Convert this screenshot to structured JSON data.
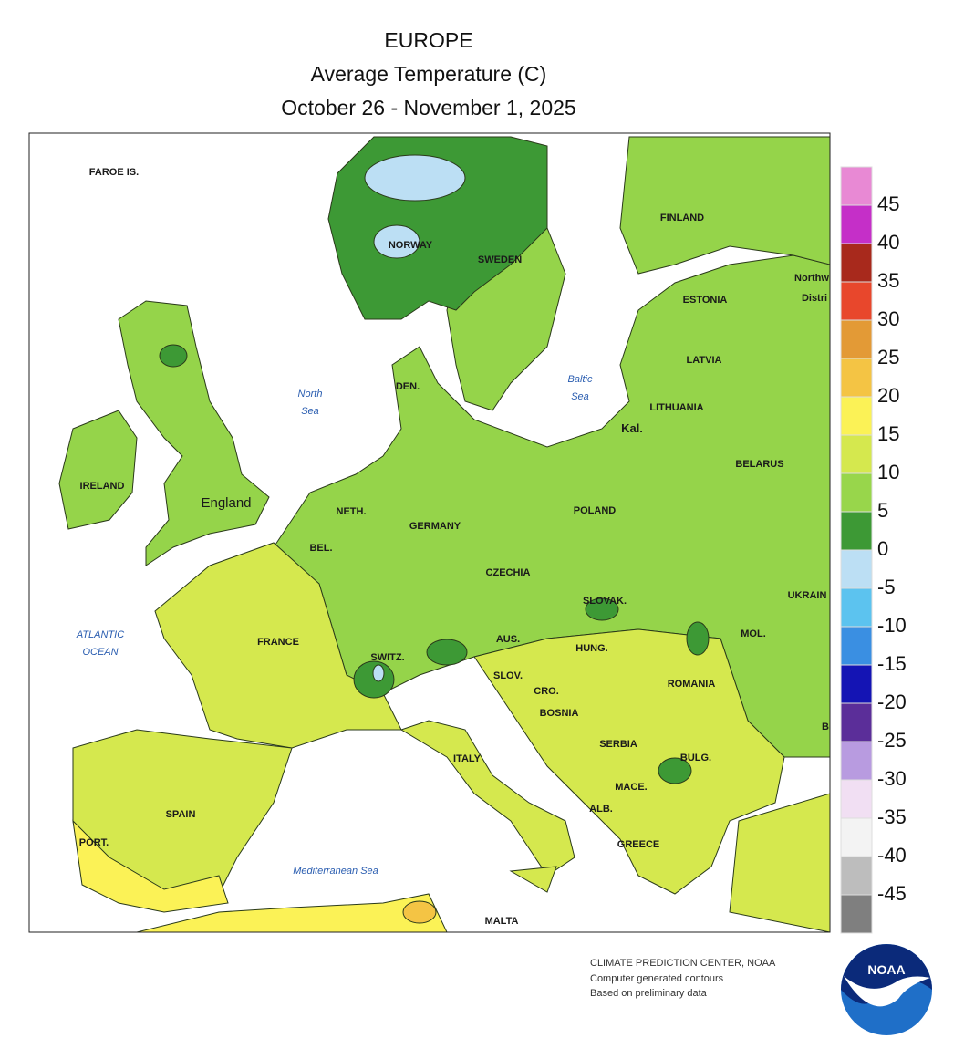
{
  "header": {
    "title": "EUROPE",
    "subtitle": "Average Temperature (C)",
    "period": "October 26 - November 1, 2025"
  },
  "map": {
    "labels": [
      "FAROE IS.",
      "NORWAY",
      "SWEDEN",
      "FINLAND",
      "ESTONIA",
      "Northw",
      "Distri",
      "LATVIA",
      "LITHUANIA",
      "Kal.",
      "BELARUS",
      "POLAND",
      "UKRAIN",
      "MOL.",
      "B",
      "DEN.",
      "IRELAND",
      "England",
      "NETH.",
      "BEL.",
      "GERMANY",
      "CZECHIA",
      "SLOVAK.",
      "AUS.",
      "HUNG.",
      "SWITZ.",
      "SLOV.",
      "CRO.",
      "BOSNIA",
      "SERBIA",
      "ROMANIA",
      "BULG.",
      "MACE.",
      "ALB.",
      "GREECE",
      "ITALY",
      "FRANCE",
      "SPAIN",
      "PORT.",
      "MALTA"
    ],
    "seas": [
      "North",
      "Sea",
      "Baltic",
      "Sea",
      "ATLANTIC",
      "OCEAN",
      "Mediterranean Sea"
    ]
  },
  "legend": {
    "ticks": [
      45,
      40,
      35,
      30,
      25,
      20,
      15,
      10,
      5,
      0,
      -5,
      -10,
      -15,
      -20,
      -25,
      -30,
      -35,
      -40,
      -45
    ],
    "colors": [
      "#e889d4",
      "#c52fc8",
      "#a8291c",
      "#e8472c",
      "#e39a36",
      "#f4c444",
      "#fbf256",
      "#d5e84e",
      "#98d64b",
      "#3d9935",
      "#bcdff4",
      "#5cc3ef",
      "#3a8fe2",
      "#1414b4",
      "#5b2e99",
      "#b89be0",
      "#f1dff3",
      "#f3f3f3",
      "#bdbdbd",
      "#7f7f7f"
    ]
  },
  "footer": {
    "lines": [
      "CLIMATE PREDICTION CENTER, NOAA",
      "Computer generated contours",
      "Based on preliminary data"
    ],
    "logo": "NOAA"
  }
}
